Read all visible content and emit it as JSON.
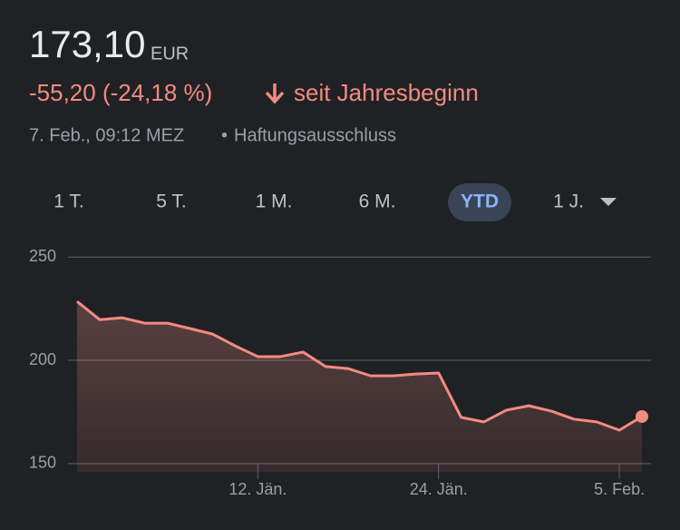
{
  "header": {
    "price": "173,10",
    "currency": "EUR",
    "change": "-55,20 (-24,18 %)",
    "period": "seit Jahresbeginn",
    "timestamp": "7. Feb., 09:12 MEZ",
    "separator": "•",
    "disclaimer": "Haftungsausschluss"
  },
  "ranges": [
    "1 T.",
    "5 T.",
    "1 M.",
    "6 M.",
    "YTD",
    "1 J."
  ],
  "selected_range": "YTD",
  "chart_data": {
    "type": "line",
    "color": "#f28b82",
    "categories": [
      null,
      null,
      null,
      null,
      null,
      null,
      null,
      null,
      "12. Jän.",
      null,
      null,
      null,
      null,
      null,
      null,
      null,
      "24. Jän.",
      null,
      null,
      null,
      null,
      null,
      null,
      null,
      "5. Feb.",
      null
    ],
    "values": [
      228.5,
      219.7,
      220.6,
      218,
      218,
      215.4,
      212.7,
      207,
      201.8,
      201.8,
      204,
      197,
      196,
      192.5,
      192.5,
      193.4,
      193.9,
      172.4,
      170.2,
      175.9,
      178,
      175.4,
      171.5,
      170.2,
      166.2,
      172.8
    ],
    "ylim": [
      146,
      258
    ],
    "yticks": [
      150,
      200,
      250
    ],
    "grid": true
  }
}
